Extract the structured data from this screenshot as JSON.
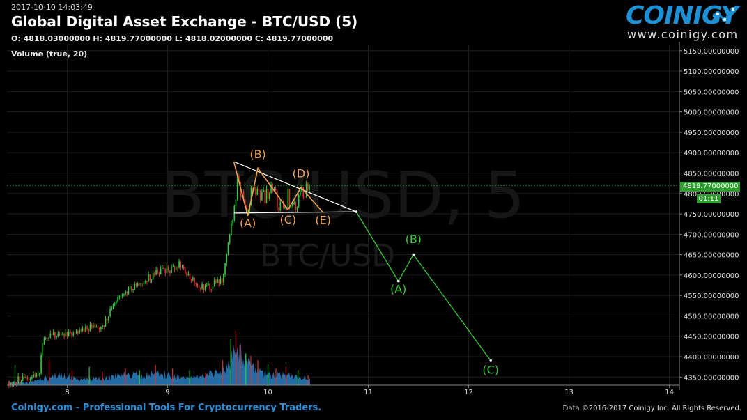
{
  "header": {
    "timestamp": "2017-10-10 14:03:49",
    "title": "Global Digital Asset Exchange - BTC/USD (5)",
    "ohlc": "O: 4818.03000000 H: 4819.77000000 L: 4818.02000000 C: 4819.77000000",
    "volume_label": "Volume (true, 20)"
  },
  "logo": {
    "brand": "COINIGY",
    "url": "www.coinigy.com"
  },
  "watermark": {
    "main": "BTC/USD, 5",
    "sub": "BTC/USD"
  },
  "footer": {
    "left": "Coinigy.com - Professional Tools For Cryptocurrency Traders.",
    "right": "Data ©2016-2017 Coinigy Inc. All Rights Reserved."
  },
  "colors": {
    "background": "#000000",
    "up": "#2ecc40",
    "down": "#e03030",
    "volume": "#2a7fbf",
    "wave_orange": "#f0a050",
    "wave_green": "#33cc33",
    "current_price": "#2e9e2e"
  },
  "chart_data": {
    "type": "candlestick",
    "x_ticks": [
      "8",
      "9",
      "10",
      "11",
      "12",
      "13",
      "14"
    ],
    "y_ticks": [
      "5150.00000000",
      "5100.00000000",
      "5050.00000000",
      "5000.00000000",
      "4950.00000000",
      "4900.00000000",
      "4850.00000000",
      "4800.00000000",
      "4750.00000000",
      "4700.00000000",
      "4650.00000000",
      "4600.00000000",
      "4550.00000000",
      "4500.00000000",
      "4450.00000000",
      "4400.00000000",
      "4350.00000000"
    ],
    "xlim": [
      7.4,
      14.1
    ],
    "ylim": [
      4330,
      5165
    ],
    "current_price": {
      "value": 4819.77,
      "label": "4819.77000000",
      "countdown": "01:11"
    },
    "price_path": [
      [
        7.42,
        4340
      ],
      [
        7.6,
        4345
      ],
      [
        7.72,
        4350
      ],
      [
        7.76,
        4445
      ],
      [
        7.85,
        4450
      ],
      [
        8.0,
        4455
      ],
      [
        8.1,
        4460
      ],
      [
        8.2,
        4472
      ],
      [
        8.3,
        4470
      ],
      [
        8.38,
        4485
      ],
      [
        8.45,
        4525
      ],
      [
        8.52,
        4550
      ],
      [
        8.6,
        4565
      ],
      [
        8.68,
        4575
      ],
      [
        8.75,
        4585
      ],
      [
        8.82,
        4595
      ],
      [
        8.9,
        4605
      ],
      [
        8.98,
        4612
      ],
      [
        9.05,
        4615
      ],
      [
        9.12,
        4630
      ],
      [
        9.18,
        4600
      ],
      [
        9.25,
        4595
      ],
      [
        9.32,
        4575
      ],
      [
        9.4,
        4570
      ],
      [
        9.48,
        4580
      ],
      [
        9.55,
        4590
      ],
      [
        9.58,
        4650
      ],
      [
        9.62,
        4700
      ],
      [
        9.66,
        4760
      ],
      [
        9.7,
        4840
      ],
      [
        9.75,
        4780
      ],
      [
        9.8,
        4760
      ],
      [
        9.85,
        4830
      ],
      [
        9.9,
        4800
      ],
      [
        9.95,
        4790
      ],
      [
        10.0,
        4800
      ],
      [
        10.05,
        4820
      ],
      [
        10.1,
        4780
      ],
      [
        10.15,
        4770
      ],
      [
        10.2,
        4790
      ],
      [
        10.25,
        4765
      ],
      [
        10.3,
        4790
      ],
      [
        10.35,
        4805
      ],
      [
        10.4,
        4815
      ],
      [
        10.42,
        4819.77
      ]
    ],
    "volume_scale_max": 100,
    "volume_profile": [
      [
        7.42,
        4
      ],
      [
        7.6,
        3
      ],
      [
        7.7,
        6
      ],
      [
        7.78,
        8
      ],
      [
        7.9,
        12
      ],
      [
        8.0,
        10
      ],
      [
        8.1,
        8
      ],
      [
        8.2,
        9
      ],
      [
        8.3,
        7
      ],
      [
        8.45,
        10
      ],
      [
        8.6,
        12
      ],
      [
        8.75,
        11
      ],
      [
        8.9,
        14
      ],
      [
        9.0,
        12
      ],
      [
        9.1,
        10
      ],
      [
        9.2,
        9
      ],
      [
        9.3,
        11
      ],
      [
        9.45,
        13
      ],
      [
        9.55,
        16
      ],
      [
        9.6,
        22
      ],
      [
        9.65,
        35
      ],
      [
        9.7,
        40
      ],
      [
        9.75,
        32
      ],
      [
        9.8,
        28
      ],
      [
        9.85,
        20
      ],
      [
        9.9,
        18
      ],
      [
        9.95,
        15
      ],
      [
        10.0,
        14
      ],
      [
        10.1,
        12
      ],
      [
        10.2,
        11
      ],
      [
        10.3,
        10
      ],
      [
        10.42,
        8
      ]
    ],
    "volume_spikes": [
      [
        7.48,
        24
      ],
      [
        7.82,
        30
      ],
      [
        8.05,
        18
      ],
      [
        8.22,
        22
      ],
      [
        8.35,
        16
      ],
      [
        8.58,
        20
      ],
      [
        8.72,
        18
      ],
      [
        8.88,
        24
      ],
      [
        9.05,
        20
      ],
      [
        9.22,
        18
      ],
      [
        9.38,
        15
      ],
      [
        9.55,
        30
      ],
      [
        9.63,
        55
      ],
      [
        9.68,
        65
      ],
      [
        9.72,
        48
      ],
      [
        9.78,
        38
      ],
      [
        9.83,
        35
      ],
      [
        9.9,
        30
      ],
      [
        10.0,
        25
      ],
      [
        10.08,
        20
      ],
      [
        10.18,
        22
      ],
      [
        10.3,
        18
      ],
      [
        10.4,
        12
      ]
    ],
    "orange_wave": {
      "points": [
        [
          9.66,
          4878
        ],
        [
          9.8,
          4745
        ],
        [
          9.9,
          4862
        ],
        [
          10.2,
          4760
        ],
        [
          10.33,
          4815
        ],
        [
          10.55,
          4753
        ]
      ],
      "labels": [
        {
          "text": "(B)",
          "x": 9.9,
          "y": 4887
        },
        {
          "text": "(A)",
          "x": 9.8,
          "y": 4718
        },
        {
          "text": "(C)",
          "x": 10.2,
          "y": 4726
        },
        {
          "text": "(D)",
          "x": 10.33,
          "y": 4840
        },
        {
          "text": "(E)",
          "x": 10.55,
          "y": 4725
        }
      ]
    },
    "triangle": {
      "upper": [
        [
          9.66,
          4878
        ],
        [
          10.88,
          4755
        ]
      ],
      "lower": [
        [
          9.66,
          4752
        ],
        [
          10.88,
          4755
        ]
      ]
    },
    "green_wave": {
      "points": [
        [
          10.88,
          4755
        ],
        [
          11.3,
          4585
        ],
        [
          11.45,
          4650
        ],
        [
          12.22,
          4390
        ]
      ],
      "labels": [
        {
          "text": "(A)",
          "x": 11.3,
          "y": 4556
        },
        {
          "text": "(B)",
          "x": 11.45,
          "y": 4678
        },
        {
          "text": "(C)",
          "x": 12.22,
          "y": 4358
        }
      ]
    }
  }
}
